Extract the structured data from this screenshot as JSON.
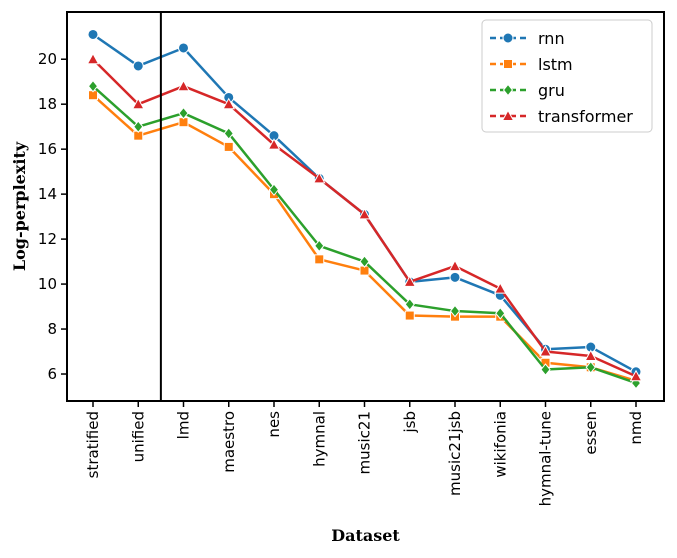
{
  "chart_data": {
    "type": "line",
    "xlabel": "Dataset",
    "ylabel": "Log-perplexity",
    "categories": [
      "stratified",
      "unified",
      "lmd",
      "maestro",
      "nes",
      "hymnal",
      "music21",
      "jsb",
      "music21jsb",
      "wikifonia",
      "hymnal-tune",
      "essen",
      "nmd"
    ],
    "ylim": [
      4.8,
      22.1
    ],
    "yticks": [
      6,
      8,
      10,
      12,
      14,
      16,
      18,
      20
    ],
    "divider_after_index": 1,
    "legend_position": "top-right",
    "series": [
      {
        "name": "rnn",
        "color": "#1f77b4",
        "marker": "circle",
        "values": [
          21.1,
          19.7,
          20.5,
          18.3,
          16.6,
          14.7,
          13.1,
          10.1,
          10.3,
          9.5,
          7.1,
          7.2,
          6.1
        ]
      },
      {
        "name": "lstm",
        "color": "#ff7f0e",
        "marker": "square",
        "values": [
          18.4,
          16.6,
          17.2,
          16.1,
          14.0,
          11.1,
          10.6,
          8.6,
          8.55,
          8.55,
          6.5,
          6.3,
          5.7
        ]
      },
      {
        "name": "gru",
        "color": "#2ca02c",
        "marker": "diamond",
        "values": [
          18.8,
          17.0,
          17.6,
          16.7,
          14.2,
          11.7,
          11.0,
          9.1,
          8.8,
          8.7,
          6.2,
          6.3,
          5.6
        ]
      },
      {
        "name": "transformer",
        "color": "#d62728",
        "marker": "triangle",
        "values": [
          20.0,
          18.0,
          18.8,
          18.0,
          16.2,
          14.7,
          13.1,
          10.1,
          10.8,
          9.8,
          7.0,
          6.8,
          5.9
        ]
      }
    ]
  }
}
